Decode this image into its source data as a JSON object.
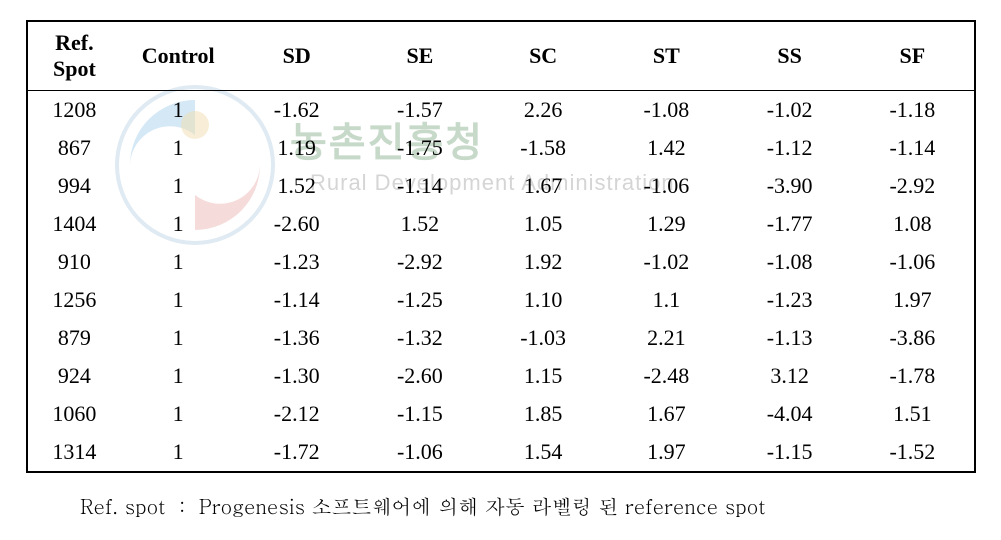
{
  "table": {
    "columns": [
      "Ref.\nSpot",
      "Control",
      "SD",
      "SE",
      "SC",
      "ST",
      "SS",
      "SF"
    ],
    "rows": [
      [
        "1208",
        "1",
        "-1.62",
        "-1.57",
        "2.26",
        "-1.08",
        "-1.02",
        "-1.18"
      ],
      [
        "867",
        "1",
        "1.19",
        "-1.75",
        "-1.58",
        "1.42",
        "-1.12",
        "-1.14"
      ],
      [
        "994",
        "1",
        "1.52",
        "-1.14",
        "1.67",
        "-1.06",
        "-3.90",
        "-2.92"
      ],
      [
        "1404",
        "1",
        "-2.60",
        "1.52",
        "1.05",
        "1.29",
        "-1.77",
        "1.08"
      ],
      [
        "910",
        "1",
        "-1.23",
        "-2.92",
        "1.92",
        "-1.02",
        "-1.08",
        "-1.06"
      ],
      [
        "1256",
        "1",
        "-1.14",
        "-1.25",
        "1.10",
        "1.1",
        "-1.23",
        "1.97"
      ],
      [
        "879",
        "1",
        "-1.36",
        "-1.32",
        "-1.03",
        "2.21",
        "-1.13",
        "-3.86"
      ],
      [
        "924",
        "1",
        "-1.30",
        "-2.60",
        "1.15",
        "-2.48",
        "3.12",
        "-1.78"
      ],
      [
        "1060",
        "1",
        "-2.12",
        "-1.15",
        "1.85",
        "1.67",
        "-4.04",
        "1.51"
      ],
      [
        "1314",
        "1",
        "-1.72",
        "-1.06",
        "1.54",
        "1.97",
        "-1.15",
        "-1.52"
      ]
    ],
    "col_widths_pct": [
      10,
      12,
      13,
      13,
      13,
      13,
      13,
      13
    ],
    "header_fontsize": 22,
    "cell_fontsize": 22,
    "border_color": "#000000",
    "background_color": "#ffffff",
    "text_color": "#000000"
  },
  "caption": "Ref. spot ： Progenesis 소프트웨어에 의해 자동 라벨링 된 reference spot",
  "watermark": {
    "main_text": "농촌진흥청",
    "main_color": "#c7d9c9",
    "sub_text": "Rural Development Administration",
    "sub_color": "#d5d5d5",
    "logo_colors": {
      "blue": "#6fb6e6",
      "red": "#e86b6b",
      "gold": "#e6c88a"
    }
  }
}
